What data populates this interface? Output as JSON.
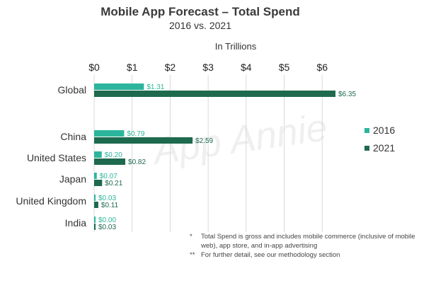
{
  "chart_data": {
    "type": "bar",
    "orientation": "horizontal",
    "title": "Mobile App Forecast – Total Spend",
    "subtitle": "2016 vs. 2021",
    "unit_label": "In Trillions",
    "categories": [
      "Global",
      "China",
      "United States",
      "Japan",
      "United Kingdom",
      "India"
    ],
    "series": [
      {
        "name": "2016",
        "color": "#2cb59d",
        "values": [
          1.31,
          0.79,
          0.2,
          0.07,
          0.03,
          0.0
        ],
        "labels": [
          "$1.31",
          "$0.79",
          "$0.20",
          "$0.07",
          "$0.03",
          "$0.00"
        ]
      },
      {
        "name": "2021",
        "color": "#1e6a4f",
        "values": [
          6.35,
          2.59,
          0.82,
          0.21,
          0.11,
          0.03
        ],
        "labels": [
          "$6.35",
          "$2.59",
          "$0.82",
          "$0.21",
          "$0.11",
          "$0.03"
        ]
      }
    ],
    "xlim": [
      0,
      6.6
    ],
    "x_ticks": [
      0,
      1,
      2,
      3,
      4,
      5,
      6
    ],
    "x_tick_labels": [
      "$0",
      "$1",
      "$2",
      "$3",
      "$4",
      "$5",
      "$6"
    ],
    "grid": true,
    "legend_position": "right"
  },
  "watermark": "App Annie",
  "footnotes": [
    {
      "mark": "*",
      "text": "Total Spend is gross and includes mobile commerce (inclusive of mobile web), app store, and in-app advertising"
    },
    {
      "mark": "**",
      "text": "For further detail, see our methodology section"
    }
  ]
}
